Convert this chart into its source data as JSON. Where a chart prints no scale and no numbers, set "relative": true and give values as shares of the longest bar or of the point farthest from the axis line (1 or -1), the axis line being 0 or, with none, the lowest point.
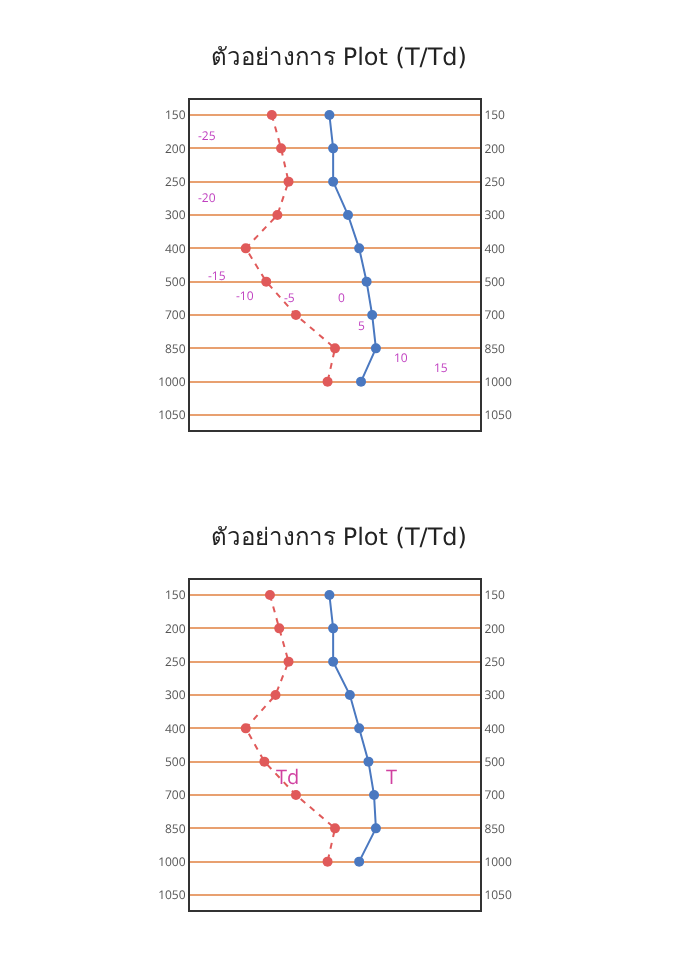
{
  "chart_data": [
    {
      "type": "line",
      "title": "ตัวอย่างการ Plot (T/Td)",
      "orientation": "horizontal",
      "relative": true,
      "categories": [
        "150",
        "200",
        "250",
        "300",
        "400",
        "500",
        "700",
        "850",
        "1000",
        "1050"
      ],
      "grid": "y",
      "marker": "circle",
      "legend": false,
      "series": [
        {
          "color": "#4a78c0",
          "line_style": "solid",
          "values": [
            0.75,
            0.77,
            0.77,
            0.85,
            0.91,
            0.95,
            0.98,
            1,
            0.92,
            null
          ]
        },
        {
          "color": "#e05a5a",
          "line_style": "dotted",
          "values": [
            0.44,
            0.49,
            0.53,
            0.47,
            0.3,
            0.41,
            0.57,
            0.78,
            0.74,
            null
          ]
        }
      ],
      "annotations": [
        "-25",
        "-20",
        "-15",
        "-10",
        "-5",
        "0",
        "5",
        "10",
        "15"
      ]
    },
    {
      "type": "line",
      "title": "ตัวอย่างการ Plot (T/Td)",
      "orientation": "horizontal",
      "relative": true,
      "categories": [
        "150",
        "200",
        "250",
        "300",
        "400",
        "500",
        "700",
        "850",
        "1000",
        "1050"
      ],
      "grid": "y",
      "marker": "circle",
      "legend": false,
      "series": [
        {
          "name": "T",
          "color": "#4a78c0",
          "line_style": "solid",
          "values": [
            0.75,
            0.77,
            0.77,
            0.86,
            0.91,
            0.96,
            0.99,
            1,
            0.91,
            null
          ]
        },
        {
          "name": "Td",
          "color": "#e05a5a",
          "line_style": "dotted",
          "values": [
            0.43,
            0.48,
            0.53,
            0.46,
            0.3,
            0.4,
            0.57,
            0.78,
            0.74,
            null
          ]
        }
      ]
    }
  ]
}
